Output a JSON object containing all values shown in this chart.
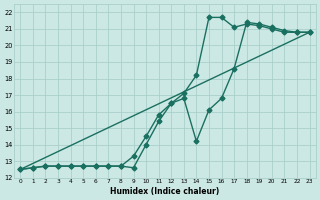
{
  "xlabel": "Humidex (Indice chaleur)",
  "xlim": [
    -0.5,
    23.5
  ],
  "ylim": [
    12,
    22.5
  ],
  "yticks": [
    12,
    13,
    14,
    15,
    16,
    17,
    18,
    19,
    20,
    21,
    22
  ],
  "xticks": [
    0,
    1,
    2,
    3,
    4,
    5,
    6,
    7,
    8,
    9,
    10,
    11,
    12,
    13,
    14,
    15,
    16,
    17,
    18,
    19,
    20,
    21,
    22,
    23
  ],
  "bg_color": "#cce8e4",
  "grid_color": "#aacfcb",
  "line_color": "#1a7060",
  "line1_x": [
    0,
    1,
    2,
    3,
    4,
    5,
    6,
    7,
    8,
    9,
    10,
    11,
    12,
    13,
    14,
    15,
    16,
    17,
    18,
    19,
    20,
    21,
    22,
    23
  ],
  "line1_y": [
    12.5,
    12.6,
    12.7,
    12.7,
    12.7,
    12.7,
    12.7,
    12.7,
    12.7,
    13.3,
    14.5,
    15.8,
    16.5,
    17.1,
    18.2,
    21.7,
    21.7,
    21.1,
    21.3,
    21.2,
    21.0,
    20.8,
    20.8,
    20.8
  ],
  "line2_x": [
    0,
    1,
    2,
    3,
    4,
    5,
    6,
    7,
    8,
    9,
    10,
    11,
    12,
    13,
    14,
    15,
    16,
    17,
    18,
    19,
    20,
    21,
    22,
    23
  ],
  "line2_y": [
    12.5,
    12.6,
    12.7,
    12.7,
    12.7,
    12.7,
    12.7,
    12.7,
    12.7,
    12.6,
    14.0,
    15.4,
    16.5,
    16.8,
    14.2,
    16.1,
    16.8,
    18.6,
    21.4,
    21.3,
    21.1,
    20.9,
    20.8,
    20.8
  ],
  "line3_x": [
    0,
    23
  ],
  "line3_y": [
    12.5,
    20.8
  ],
  "markersize": 2.5,
  "linewidth": 1.0
}
